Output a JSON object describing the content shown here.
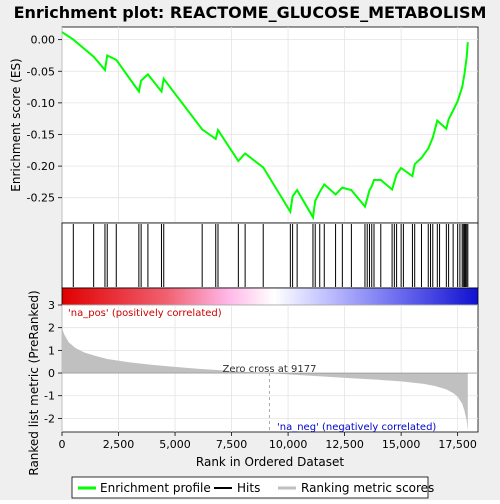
{
  "chart_data": {
    "type": "line",
    "title": "Enrichment plot: REACTOME_GLUCOSE_METABOLISM",
    "xlabel": "Rank in Ordered Dataset",
    "xlim": [
      0,
      18400
    ],
    "x_ticks": [
      0,
      2500,
      5000,
      7500,
      10000,
      12500,
      15000,
      17500
    ],
    "x_tick_labels": [
      "0",
      "2,500",
      "5,000",
      "7,500",
      "10,000",
      "12,500",
      "15,000",
      "17,500"
    ],
    "es_panel": {
      "ylabel": "Enrichment score (ES)",
      "ylim": [
        -0.29,
        0.02
      ],
      "y_ticks": [
        0.0,
        -0.05,
        -0.1,
        -0.15,
        -0.2,
        -0.25
      ],
      "y_tick_labels": [
        "0.00",
        "-0.05",
        "-0.10",
        "-0.15",
        "-0.20",
        "-0.25"
      ],
      "series_name": "Enrichment profile",
      "line_color": "#00ff00",
      "x": [
        0,
        500,
        1400,
        1900,
        2000,
        2400,
        3400,
        3500,
        3800,
        4400,
        4500,
        6200,
        6800,
        6900,
        7800,
        8100,
        8900,
        10100,
        10200,
        10400,
        11100,
        11200,
        11400,
        11600,
        12100,
        12400,
        12800,
        13400,
        13600,
        13700,
        13800,
        14100,
        14600,
        14800,
        15000,
        15500,
        15600,
        15900,
        16200,
        16400,
        16600,
        17000,
        17100,
        17300,
        17500,
        17700,
        17800,
        17900,
        17950
      ],
      "y": [
        0.012,
        0.0,
        -0.027,
        -0.048,
        -0.025,
        -0.032,
        -0.082,
        -0.065,
        -0.055,
        -0.082,
        -0.062,
        -0.142,
        -0.157,
        -0.143,
        -0.192,
        -0.18,
        -0.202,
        -0.272,
        -0.248,
        -0.238,
        -0.281,
        -0.255,
        -0.241,
        -0.229,
        -0.245,
        -0.234,
        -0.238,
        -0.264,
        -0.238,
        -0.232,
        -0.222,
        -0.222,
        -0.237,
        -0.213,
        -0.203,
        -0.216,
        -0.197,
        -0.187,
        -0.172,
        -0.155,
        -0.128,
        -0.141,
        -0.126,
        -0.112,
        -0.097,
        -0.075,
        -0.055,
        -0.028,
        -0.004
      ]
    },
    "hits": {
      "series_name": "Hits",
      "positions": [
        500,
        1400,
        1900,
        2000,
        2400,
        3400,
        3500,
        3800,
        4400,
        4500,
        6200,
        6800,
        6900,
        7800,
        8100,
        8900,
        10100,
        10200,
        10400,
        11100,
        11200,
        11400,
        11600,
        12100,
        12400,
        12800,
        13400,
        13500,
        13600,
        13700,
        13800,
        14100,
        14600,
        14700,
        14800,
        15000,
        15100,
        15500,
        15600,
        15900,
        16200,
        16300,
        16400,
        16600,
        16700,
        17000,
        17100,
        17300,
        17500,
        17600,
        17700,
        17750,
        17800,
        17850,
        17900,
        17950
      ]
    },
    "rank_metric_panel": {
      "ylabel": "Ranked list metric (PreRanked)",
      "ylim": [
        -2.6,
        3.0
      ],
      "y_ticks": [
        3,
        2,
        1,
        0,
        -1,
        -2
      ],
      "y_tick_labels": [
        "3",
        "2",
        "1",
        "0",
        "-1",
        "-2"
      ],
      "series_name": "Ranking metric scores",
      "fill_color": "#c0c0c0",
      "x": [
        0,
        100,
        300,
        600,
        1000,
        1500,
        2000,
        3000,
        4000,
        5000,
        6000,
        7000,
        8000,
        9177,
        10000,
        11000,
        12000,
        13000,
        14000,
        15000,
        16000,
        16500,
        17000,
        17300,
        17500,
        17700,
        17800,
        17900,
        17950
      ],
      "y": [
        2.0,
        1.7,
        1.35,
        1.1,
        0.9,
        0.75,
        0.62,
        0.47,
        0.36,
        0.27,
        0.19,
        0.12,
        0.06,
        0.0,
        -0.06,
        -0.12,
        -0.18,
        -0.24,
        -0.3,
        -0.37,
        -0.48,
        -0.57,
        -0.72,
        -0.88,
        -1.05,
        -1.35,
        -1.65,
        -2.1,
        -2.55
      ],
      "zero_cross_label": "Zero cross at 9177",
      "zero_cross_x": 9177,
      "pos_label": "'na_pos' (positively correlated)",
      "neg_label": "'na_neg' (negatively correlated)",
      "pos_color": "#cc0000",
      "neg_color": "#0000cc"
    },
    "legend": {
      "placement": "bottom",
      "entries": [
        {
          "label": "Enrichment profile",
          "color": "#00ff00"
        },
        {
          "label": "Hits",
          "color": "#000000"
        },
        {
          "label": "Ranking metric scores",
          "color": "#c0c0c0"
        }
      ]
    }
  }
}
